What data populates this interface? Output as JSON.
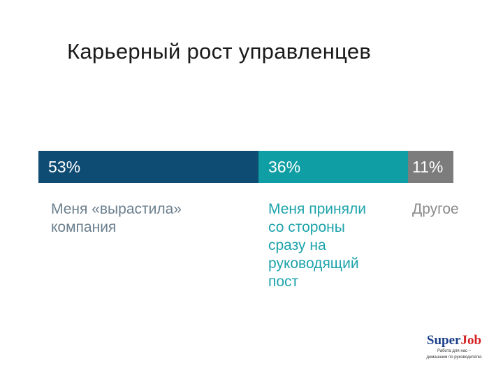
{
  "chart_data": {
    "type": "bar",
    "orientation": "horizontal-stacked",
    "title": "Карьерный рост управленцев",
    "segments": [
      {
        "value": 53,
        "label": "53%",
        "category": [
          "Меня «вырастила»",
          "компания"
        ],
        "color": "#0f4c73",
        "text_color": "#6b7f8e"
      },
      {
        "value": 36,
        "label": "36%",
        "category": [
          "Меня приняли",
          "со стороны",
          "сразу на",
          "руководящий",
          "пост"
        ],
        "color": "#0f9ea3",
        "text_color": "#1da3ab"
      },
      {
        "value": 11,
        "label": "11%",
        "category": [
          "Другое"
        ],
        "color": "#7c7c7c",
        "text_color": "#8a8a8a"
      }
    ],
    "total": 100,
    "grid": false,
    "legend": "none"
  },
  "logo": {
    "brand_main": "Super",
    "brand_accent": "Job",
    "tagline": [
      "Работа для нас –",
      "домашним по руководителю"
    ]
  }
}
